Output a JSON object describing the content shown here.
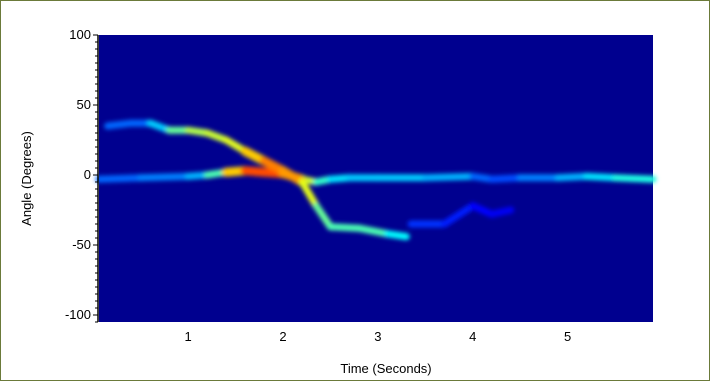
{
  "chart_data": {
    "type": "heatmap",
    "title": "",
    "xlabel": "Time (Seconds)",
    "ylabel": "Angle (Degrees)",
    "xlim": [
      0.06,
      5.9
    ],
    "ylim": [
      -105,
      100
    ],
    "x_ticks": [
      1,
      2,
      3,
      4,
      5
    ],
    "y_ticks": [
      100,
      50,
      0,
      -50,
      -100
    ],
    "grid": false,
    "legend": "none",
    "colormap": [
      "#00008f",
      "#0000ff",
      "#00ffff",
      "#ffff00",
      "#ff0000"
    ],
    "background_color": "#00008f",
    "tracks": [
      {
        "name": "",
        "points": [
          [
            0.06,
            -3
          ],
          [
            0.5,
            -2
          ],
          [
            1.0,
            -1
          ],
          [
            1.2,
            0
          ],
          [
            1.4,
            2
          ],
          [
            1.6,
            3
          ],
          [
            1.8,
            2
          ],
          [
            2.0,
            1
          ],
          [
            2.2,
            -3
          ],
          [
            2.35,
            -5
          ],
          [
            2.5,
            -3
          ],
          [
            2.7,
            -2
          ],
          [
            3.0,
            -2
          ],
          [
            3.5,
            -2
          ],
          [
            4.0,
            -1
          ],
          [
            4.2,
            -3
          ],
          [
            4.5,
            -2
          ],
          [
            4.9,
            -2
          ],
          [
            5.2,
            -1
          ],
          [
            5.5,
            -2
          ],
          [
            5.9,
            -3
          ]
        ],
        "intensity": [
          0.35,
          0.35,
          0.4,
          0.45,
          0.7,
          0.9,
          0.95,
          0.9,
          0.8,
          0.6,
          0.5,
          0.45,
          0.45,
          0.45,
          0.4,
          0.3,
          0.35,
          0.4,
          0.45,
          0.5,
          0.55
        ]
      },
      {
        "name": "",
        "points": [
          [
            0.15,
            35
          ],
          [
            0.4,
            37
          ],
          [
            0.6,
            37
          ],
          [
            0.8,
            32
          ],
          [
            1.0,
            32
          ],
          [
            1.2,
            30
          ],
          [
            1.4,
            25
          ],
          [
            1.6,
            17
          ],
          [
            1.8,
            10
          ],
          [
            2.0,
            3
          ],
          [
            2.2,
            -5
          ],
          [
            2.35,
            -22
          ],
          [
            2.5,
            -37
          ],
          [
            2.8,
            -38
          ],
          [
            3.1,
            -42
          ],
          [
            3.3,
            -44
          ]
        ],
        "intensity": [
          0.35,
          0.35,
          0.35,
          0.55,
          0.65,
          0.7,
          0.7,
          0.75,
          0.85,
          0.9,
          0.8,
          0.65,
          0.55,
          0.6,
          0.55,
          0.45
        ]
      },
      {
        "name": "",
        "points": [
          [
            3.35,
            -35
          ],
          [
            3.7,
            -35
          ],
          [
            4.0,
            -22
          ],
          [
            4.2,
            -28
          ],
          [
            4.4,
            -25
          ]
        ],
        "intensity": [
          0.3,
          0.3,
          0.25,
          0.25,
          0.2
        ]
      }
    ]
  }
}
